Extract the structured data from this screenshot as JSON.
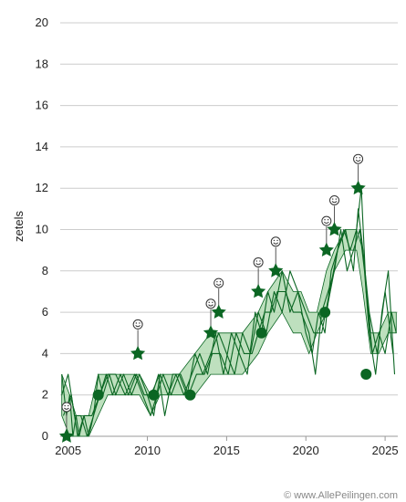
{
  "chart_data": {
    "type": "line",
    "ylabel": "zetels",
    "ylim": [
      0,
      20
    ],
    "yticks": [
      0,
      2,
      4,
      6,
      8,
      10,
      12,
      14,
      16,
      18,
      20
    ],
    "xlim": [
      2004.5,
      2025.8
    ],
    "xticks": [
      2005,
      2010,
      2015,
      2020,
      2025
    ],
    "grid": true,
    "credit": "© www.AllePeilingen.com",
    "colors": {
      "line": "#0b6623",
      "band_fill": "#a8d5a8",
      "grid": "#cccccc",
      "marker": "#0b6623"
    },
    "band": [
      {
        "x": 2004.6,
        "low": 1,
        "high": 3
      },
      {
        "x": 2005.1,
        "low": 0,
        "high": 2
      },
      {
        "x": 2005.5,
        "low": 0,
        "high": 1
      },
      {
        "x": 2006.3,
        "low": 0,
        "high": 1
      },
      {
        "x": 2006.9,
        "low": 1,
        "high": 3
      },
      {
        "x": 2007.5,
        "low": 2,
        "high": 3
      },
      {
        "x": 2008.5,
        "low": 2,
        "high": 3
      },
      {
        "x": 2009.5,
        "low": 2,
        "high": 3
      },
      {
        "x": 2010.2,
        "low": 1,
        "high": 2
      },
      {
        "x": 2010.8,
        "low": 2,
        "high": 3
      },
      {
        "x": 2012.0,
        "low": 2,
        "high": 3
      },
      {
        "x": 2013.0,
        "low": 2,
        "high": 4
      },
      {
        "x": 2014.0,
        "low": 3,
        "high": 5
      },
      {
        "x": 2014.8,
        "low": 3,
        "high": 5
      },
      {
        "x": 2016.0,
        "low": 3,
        "high": 5
      },
      {
        "x": 2017.0,
        "low": 4,
        "high": 6
      },
      {
        "x": 2017.6,
        "low": 5,
        "high": 7
      },
      {
        "x": 2018.5,
        "low": 6,
        "high": 8
      },
      {
        "x": 2019.2,
        "low": 5,
        "high": 7
      },
      {
        "x": 2019.7,
        "low": 5,
        "high": 7
      },
      {
        "x": 2020.2,
        "low": 4,
        "high": 6
      },
      {
        "x": 2020.7,
        "low": 5,
        "high": 6
      },
      {
        "x": 2021.3,
        "low": 6,
        "high": 8
      },
      {
        "x": 2021.8,
        "low": 8,
        "high": 9
      },
      {
        "x": 2022.5,
        "low": 9,
        "high": 10
      },
      {
        "x": 2023.2,
        "low": 9,
        "high": 10
      },
      {
        "x": 2023.6,
        "low": 7,
        "high": 9
      },
      {
        "x": 2024.1,
        "low": 4,
        "high": 5
      },
      {
        "x": 2024.6,
        "low": 4,
        "high": 5
      },
      {
        "x": 2025.2,
        "low": 5,
        "high": 6
      },
      {
        "x": 2025.7,
        "low": 5,
        "high": 6
      }
    ],
    "poll_lines": [
      {
        "x": [
          2004.6,
          2004.9,
          2005.1,
          2005.3,
          2005.5,
          2005.7,
          2006.0,
          2006.3,
          2006.6,
          2006.9,
          2007.2,
          2007.6,
          2008.0,
          2008.5,
          2009.0,
          2009.5,
          2010.0,
          2010.4,
          2010.8,
          2011.3,
          2011.8,
          2012.3,
          2012.8,
          2013.3,
          2013.8,
          2014.3,
          2014.8,
          2015.3,
          2015.8,
          2016.3,
          2016.8,
          2017.2,
          2017.6,
          2018.0,
          2018.5,
          2019.0,
          2019.5,
          2020.0,
          2020.4,
          2020.8,
          2021.2,
          2021.6,
          2022.0,
          2022.4,
          2022.8,
          2023.2,
          2023.5,
          2023.8,
          2024.2,
          2024.6,
          2025.0,
          2025.4,
          2025.7
        ],
        "y": [
          3,
          1,
          2,
          0,
          1,
          0,
          1,
          0,
          1,
          3,
          2,
          3,
          2,
          3,
          2,
          3,
          2,
          1,
          3,
          2,
          3,
          2,
          3,
          4,
          3,
          5,
          3,
          5,
          4,
          3,
          6,
          5,
          7,
          6,
          8,
          6,
          7,
          5,
          4,
          6,
          5,
          8,
          9,
          10,
          9,
          10,
          12,
          7,
          4,
          5,
          4,
          6,
          5
        ]
      },
      {
        "x": [
          2004.6,
          2005.0,
          2005.4,
          2005.8,
          2006.2,
          2006.6,
          2007.0,
          2007.4,
          2007.8,
          2008.3,
          2008.8,
          2009.3,
          2009.8,
          2010.3,
          2010.7,
          2011.1,
          2011.6,
          2012.1,
          2012.6,
          2013.1,
          2013.6,
          2014.1,
          2014.6,
          2015.1,
          2015.6,
          2016.1,
          2016.6,
          2017.0,
          2017.4,
          2017.8,
          2018.2,
          2018.7,
          2019.2,
          2019.7,
          2020.2,
          2020.6,
          2021.0,
          2021.4,
          2021.8,
          2022.2,
          2022.6,
          2023.0,
          2023.4,
          2023.7,
          2024.0,
          2024.4,
          2024.8,
          2025.2,
          2025.6
        ],
        "y": [
          2,
          3,
          1,
          1,
          0,
          1,
          2,
          3,
          2,
          3,
          2,
          3,
          2,
          2,
          3,
          1,
          3,
          3,
          2,
          3,
          3,
          4,
          4,
          3,
          5,
          4,
          4,
          5,
          6,
          6,
          7,
          7,
          6,
          6,
          5,
          3,
          6,
          7,
          8,
          10,
          8,
          9,
          10,
          8,
          5,
          3,
          6,
          8,
          3
        ]
      },
      {
        "x": [
          2004.7,
          2005.2,
          2005.6,
          2006.0,
          2006.5,
          2007.0,
          2007.5,
          2008.0,
          2008.6,
          2009.2,
          2009.7,
          2010.2,
          2010.6,
          2011.0,
          2011.5,
          2012.0,
          2012.5,
          2013.0,
          2013.5,
          2014.0,
          2014.5,
          2015.0,
          2015.5,
          2016.0,
          2016.5,
          2017.0,
          2017.5,
          2018.0,
          2018.5,
          2019.0,
          2019.5,
          2020.0,
          2020.5,
          2021.0,
          2021.5,
          2022.0,
          2022.5,
          2023.0,
          2023.3,
          2023.6,
          2024.0,
          2024.5,
          2025.0,
          2025.5
        ],
        "y": [
          1,
          2,
          0,
          1,
          1,
          2,
          3,
          3,
          2,
          3,
          2,
          1,
          2,
          3,
          2,
          3,
          2,
          4,
          3,
          4,
          5,
          4,
          3,
          5,
          4,
          6,
          5,
          7,
          6,
          8,
          7,
          6,
          5,
          5,
          7,
          9,
          10,
          8,
          11,
          9,
          6,
          4,
          7,
          4
        ]
      }
    ],
    "results_circle": [
      {
        "x": 2006.9,
        "y": 2
      },
      {
        "x": 2010.4,
        "y": 2
      },
      {
        "x": 2012.7,
        "y": 2
      },
      {
        "x": 2017.2,
        "y": 5
      },
      {
        "x": 2021.2,
        "y": 6
      },
      {
        "x": 2023.8,
        "y": 3
      }
    ],
    "results_star": [
      {
        "x": 2004.9,
        "y": 0
      },
      {
        "x": 2009.4,
        "y": 4
      },
      {
        "x": 2014.0,
        "y": 5
      },
      {
        "x": 2014.5,
        "y": 6
      },
      {
        "x": 2017.0,
        "y": 7
      },
      {
        "x": 2018.1,
        "y": 8
      },
      {
        "x": 2021.3,
        "y": 9
      },
      {
        "x": 2021.8,
        "y": 10
      },
      {
        "x": 2023.3,
        "y": 12
      }
    ]
  }
}
